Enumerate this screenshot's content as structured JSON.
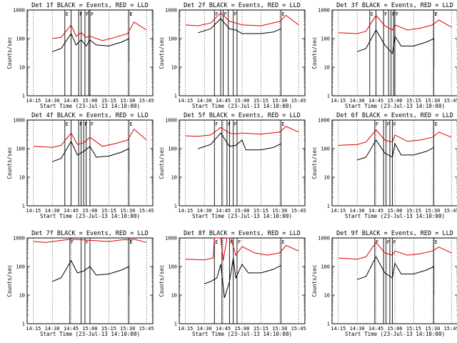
{
  "chart_data": [
    {
      "type": "line",
      "title": "Det 1f BLACK = Events, RED = LLD",
      "xlabel": "Start Time (23-Jul-13 14:10:00)",
      "ylabel": "Counts/sec",
      "ylim": [
        1,
        1000
      ],
      "x_ticks": [
        "14:15",
        "14:30",
        "14:45",
        "15:00",
        "15:15",
        "15:30",
        "15:45"
      ],
      "y_ticks": [
        "1",
        "10",
        "100",
        "1000"
      ],
      "grid": "dotted vertical at x ticks",
      "flags": [
        "E",
        "F",
        "F",
        "F",
        "F",
        "E"
      ],
      "series": [
        {
          "color": "#000000",
          "x": [
            "14:30",
            "14:37",
            "14:45",
            "14:49",
            "14:53",
            "14:57",
            "15:00",
            "15:05",
            "15:15",
            "15:25",
            "15:31",
            "15:31"
          ],
          "values": [
            35,
            45,
            150,
            60,
            90,
            55,
            90,
            60,
            55,
            75,
            100,
            15
          ]
        },
        {
          "color": "#dd0000",
          "x": [
            "14:30",
            "14:37",
            "14:45",
            "14:49",
            "14:53",
            "14:57",
            "15:00",
            "15:10",
            "15:20",
            "15:30",
            "15:35",
            "15:45"
          ],
          "values": [
            100,
            110,
            300,
            120,
            160,
            110,
            120,
            85,
            110,
            150,
            380,
            200
          ]
        }
      ]
    },
    {
      "type": "line",
      "title": "Det 2f BLACK = Events, RED = LLD",
      "xlabel": "Start Time (23-Jul-13 14:10:00)",
      "ylabel": "Counts/sec",
      "ylim": [
        1,
        1000
      ],
      "x_ticks": [
        "14:15",
        "14:30",
        "14:45",
        "15:00",
        "15:15",
        "15:30",
        "15:45"
      ],
      "y_ticks": [
        "1",
        "10",
        "100",
        "1000"
      ],
      "grid": "dotted vertical at x ticks",
      "flags": [
        "F",
        "F",
        "F",
        "E"
      ],
      "series": [
        {
          "color": "#000000",
          "x": [
            "14:25",
            "14:35",
            "14:43",
            "14:50",
            "14:55",
            "15:00",
            "15:15",
            "15:25",
            "15:31"
          ],
          "values": [
            160,
            220,
            500,
            220,
            200,
            150,
            150,
            170,
            220
          ]
        },
        {
          "color": "#dd0000",
          "x": [
            "14:15",
            "14:25",
            "14:35",
            "14:43",
            "14:50",
            "14:55",
            "15:00",
            "15:15",
            "15:30",
            "15:35",
            "15:45"
          ],
          "values": [
            300,
            280,
            350,
            800,
            400,
            350,
            300,
            280,
            400,
            650,
            300
          ]
        }
      ]
    },
    {
      "type": "line",
      "title": "Det 3f BLACK = Events, RED = LLD",
      "xlabel": "Start Time (23-Jul-13 14:10:00)",
      "ylabel": "Counts/sec",
      "ylim": [
        1,
        1000
      ],
      "x_ticks": [
        "14:15",
        "14:30",
        "14:45",
        "15:00",
        "15:15",
        "15:30",
        "15:45"
      ],
      "y_ticks": [
        "1",
        "10",
        "100",
        "1000"
      ],
      "grid": "dotted vertical at x ticks",
      "flags": [
        "E",
        "F",
        "F",
        "F",
        "F",
        "E"
      ],
      "series": [
        {
          "color": "#000000",
          "x": [
            "14:30",
            "14:37",
            "14:45",
            "14:52",
            "14:58",
            "15:00",
            "15:05",
            "15:15",
            "15:25",
            "15:31",
            "15:31"
          ],
          "values": [
            35,
            45,
            200,
            60,
            30,
            120,
            55,
            55,
            75,
            100,
            10
          ]
        },
        {
          "color": "#dd0000",
          "x": [
            "14:15",
            "14:30",
            "14:37",
            "14:45",
            "14:52",
            "14:58",
            "15:00",
            "15:10",
            "15:20",
            "15:30",
            "15:35",
            "15:45"
          ],
          "values": [
            160,
            150,
            180,
            650,
            280,
            200,
            300,
            200,
            230,
            300,
            450,
            250
          ]
        }
      ]
    },
    {
      "type": "line",
      "title": "Det 4f BLACK = Events, RED = LLD",
      "xlabel": "Start Time (23-Jul-13 14:10:00)",
      "ylabel": "Counts/sec",
      "ylim": [
        1,
        1000
      ],
      "x_ticks": [
        "14:15",
        "14:30",
        "14:45",
        "15:00",
        "15:15",
        "15:30",
        "15:45"
      ],
      "y_ticks": [
        "1",
        "10",
        "100",
        "1000"
      ],
      "grid": "dotted vertical at x ticks",
      "flags": [
        "E",
        "F",
        "F",
        "F",
        "E"
      ],
      "series": [
        {
          "color": "#000000",
          "x": [
            "14:30",
            "14:37",
            "14:45",
            "14:50",
            "14:55",
            "15:00",
            "15:05",
            "15:15",
            "15:25",
            "15:31",
            "15:31"
          ],
          "values": [
            35,
            45,
            180,
            60,
            80,
            120,
            50,
            55,
            75,
            100,
            15
          ]
        },
        {
          "color": "#dd0000",
          "x": [
            "14:15",
            "14:30",
            "14:37",
            "14:45",
            "14:50",
            "14:55",
            "15:00",
            "15:10",
            "15:20",
            "15:30",
            "15:35",
            "15:45"
          ],
          "values": [
            120,
            110,
            130,
            350,
            140,
            160,
            250,
            120,
            150,
            200,
            480,
            200
          ]
        }
      ]
    },
    {
      "type": "line",
      "title": "Det 5f BLACK = Events, RED = LLD",
      "xlabel": "Start Time (23-Jul-13 14:10:00)",
      "ylabel": "Counts/sec",
      "ylim": [
        1,
        1000
      ],
      "x_ticks": [
        "14:15",
        "14:30",
        "14:45",
        "15:00",
        "15:15",
        "15:30",
        "15:45"
      ],
      "y_ticks": [
        "1",
        "10",
        "100",
        "1000"
      ],
      "grid": "dotted vertical at x ticks",
      "flags": [
        "F",
        "F",
        "F",
        "E"
      ],
      "series": [
        {
          "color": "#000000",
          "x": [
            "14:25",
            "14:35",
            "14:43",
            "14:50",
            "14:55",
            "15:00",
            "15:03",
            "15:15",
            "15:25",
            "15:31"
          ],
          "values": [
            100,
            140,
            350,
            120,
            130,
            200,
            90,
            90,
            110,
            150
          ]
        },
        {
          "color": "#dd0000",
          "x": [
            "14:15",
            "14:25",
            "14:35",
            "14:43",
            "14:50",
            "14:55",
            "15:00",
            "15:15",
            "15:30",
            "15:35",
            "15:45"
          ],
          "values": [
            280,
            270,
            300,
            550,
            350,
            330,
            350,
            320,
            380,
            600,
            380
          ]
        }
      ]
    },
    {
      "type": "line",
      "title": "Det 6f BLACK = Events, RED = LLD",
      "xlabel": "Start Time (23-Jul-13 14:10:00)",
      "ylabel": "Counts/sec",
      "ylim": [
        1,
        1000
      ],
      "x_ticks": [
        "14:15",
        "14:30",
        "14:45",
        "15:00",
        "15:15",
        "15:30",
        "15:45"
      ],
      "y_ticks": [
        "1",
        "10",
        "100",
        "1000"
      ],
      "grid": "dotted vertical at x ticks",
      "flags": [
        "F",
        "F",
        "F",
        "E"
      ],
      "series": [
        {
          "color": "#000000",
          "x": [
            "14:30",
            "14:37",
            "14:45",
            "14:52",
            "14:58",
            "15:00",
            "15:05",
            "15:15",
            "15:25",
            "15:31"
          ],
          "values": [
            40,
            50,
            200,
            70,
            50,
            150,
            60,
            60,
            80,
            110
          ]
        },
        {
          "color": "#dd0000",
          "x": [
            "14:15",
            "14:30",
            "14:37",
            "14:45",
            "14:52",
            "14:58",
            "15:00",
            "15:10",
            "15:20",
            "15:30",
            "15:35",
            "15:45"
          ],
          "values": [
            130,
            140,
            170,
            450,
            200,
            170,
            300,
            180,
            200,
            250,
            380,
            250
          ]
        }
      ]
    },
    {
      "type": "line",
      "title": "Det 7f BLACK = Events, RED = LLD",
      "xlabel": "Start Time (23-Jul-13 14:10:00)",
      "ylabel": "Counts/sec",
      "ylim": [
        1,
        1000
      ],
      "x_ticks": [
        "14:15",
        "14:30",
        "14:45",
        "15:00",
        "15:15",
        "15:30",
        "15:45"
      ],
      "y_ticks": [
        "1",
        "10",
        "100",
        "1000"
      ],
      "grid": "dotted vertical at x ticks",
      "flags": [
        "F",
        "F",
        "F",
        "E"
      ],
      "series": [
        {
          "color": "#000000",
          "x": [
            "14:30",
            "14:37",
            "14:45",
            "14:50",
            "14:55",
            "15:00",
            "15:05",
            "15:15",
            "15:25",
            "15:31",
            "15:31"
          ],
          "values": [
            30,
            40,
            160,
            60,
            70,
            100,
            50,
            55,
            75,
            100,
            10
          ]
        },
        {
          "color": "#dd0000",
          "x": [
            "14:15",
            "14:25",
            "14:35",
            "14:45",
            "14:55",
            "15:05",
            "15:15",
            "15:25",
            "15:35",
            "15:45"
          ],
          "values": [
            750,
            700,
            800,
            900,
            850,
            800,
            750,
            850,
            900,
            700
          ]
        }
      ]
    },
    {
      "type": "line",
      "title": "Det 8f BLACK = Events, RED = LLD",
      "xlabel": "Start Time (23-Jul-13 14:10:00)",
      "ylabel": "Counts/sec",
      "ylim": [
        1,
        1000
      ],
      "x_ticks": [
        "14:15",
        "14:30",
        "14:45",
        "15:00",
        "15:15",
        "15:30",
        "15:45"
      ],
      "y_ticks": [
        "1",
        "10",
        "100",
        "1000"
      ],
      "grid": "dotted vertical at x ticks",
      "flags": [
        "E",
        "F",
        "F",
        "E"
      ],
      "series": [
        {
          "color": "#000000",
          "x": [
            "14:30",
            "14:35",
            "14:40",
            "14:43",
            "14:46",
            "14:50",
            "14:53",
            "14:55",
            "15:00",
            "15:05",
            "15:15",
            "15:25",
            "15:31"
          ],
          "values": [
            25,
            30,
            40,
            120,
            8,
            30,
            200,
            40,
            120,
            60,
            60,
            80,
            110
          ]
        },
        {
          "color": "#dd0000",
          "x": [
            "14:15",
            "14:30",
            "14:37",
            "14:38",
            "14:43",
            "14:45",
            "14:48",
            "14:51",
            "14:55",
            "15:00",
            "15:10",
            "15:20",
            "15:30",
            "15:35",
            "15:45"
          ],
          "values": [
            180,
            170,
            200,
            1000,
            1000,
            160,
            1000,
            1000,
            250,
            500,
            300,
            250,
            300,
            550,
            350
          ]
        }
      ]
    },
    {
      "type": "line",
      "title": "Det 9f BLACK = Events, RED = LLD",
      "xlabel": "Start Time (23-Jul-13 14:10:00)",
      "ylabel": "Counts/sec",
      "ylim": [
        1,
        1000
      ],
      "x_ticks": [
        "14:15",
        "14:30",
        "14:45",
        "15:00",
        "15:15",
        "15:30",
        "15:45"
      ],
      "y_ticks": [
        "1",
        "10",
        "100",
        "1000"
      ],
      "grid": "dotted vertical at x ticks",
      "flags": [
        "F",
        "F",
        "F",
        "E"
      ],
      "series": [
        {
          "color": "#000000",
          "x": [
            "14:30",
            "14:37",
            "14:45",
            "14:52",
            "14:58",
            "15:00",
            "15:05",
            "15:15",
            "15:25",
            "15:31",
            "15:31"
          ],
          "values": [
            35,
            45,
            220,
            60,
            40,
            130,
            55,
            55,
            75,
            100,
            10
          ]
        },
        {
          "color": "#dd0000",
          "x": [
            "14:15",
            "14:30",
            "14:37",
            "14:45",
            "14:52",
            "14:58",
            "15:00",
            "15:10",
            "15:20",
            "15:30",
            "15:35",
            "15:45"
          ],
          "values": [
            200,
            180,
            220,
            700,
            300,
            250,
            350,
            250,
            280,
            350,
            480,
            300
          ]
        }
      ]
    }
  ]
}
